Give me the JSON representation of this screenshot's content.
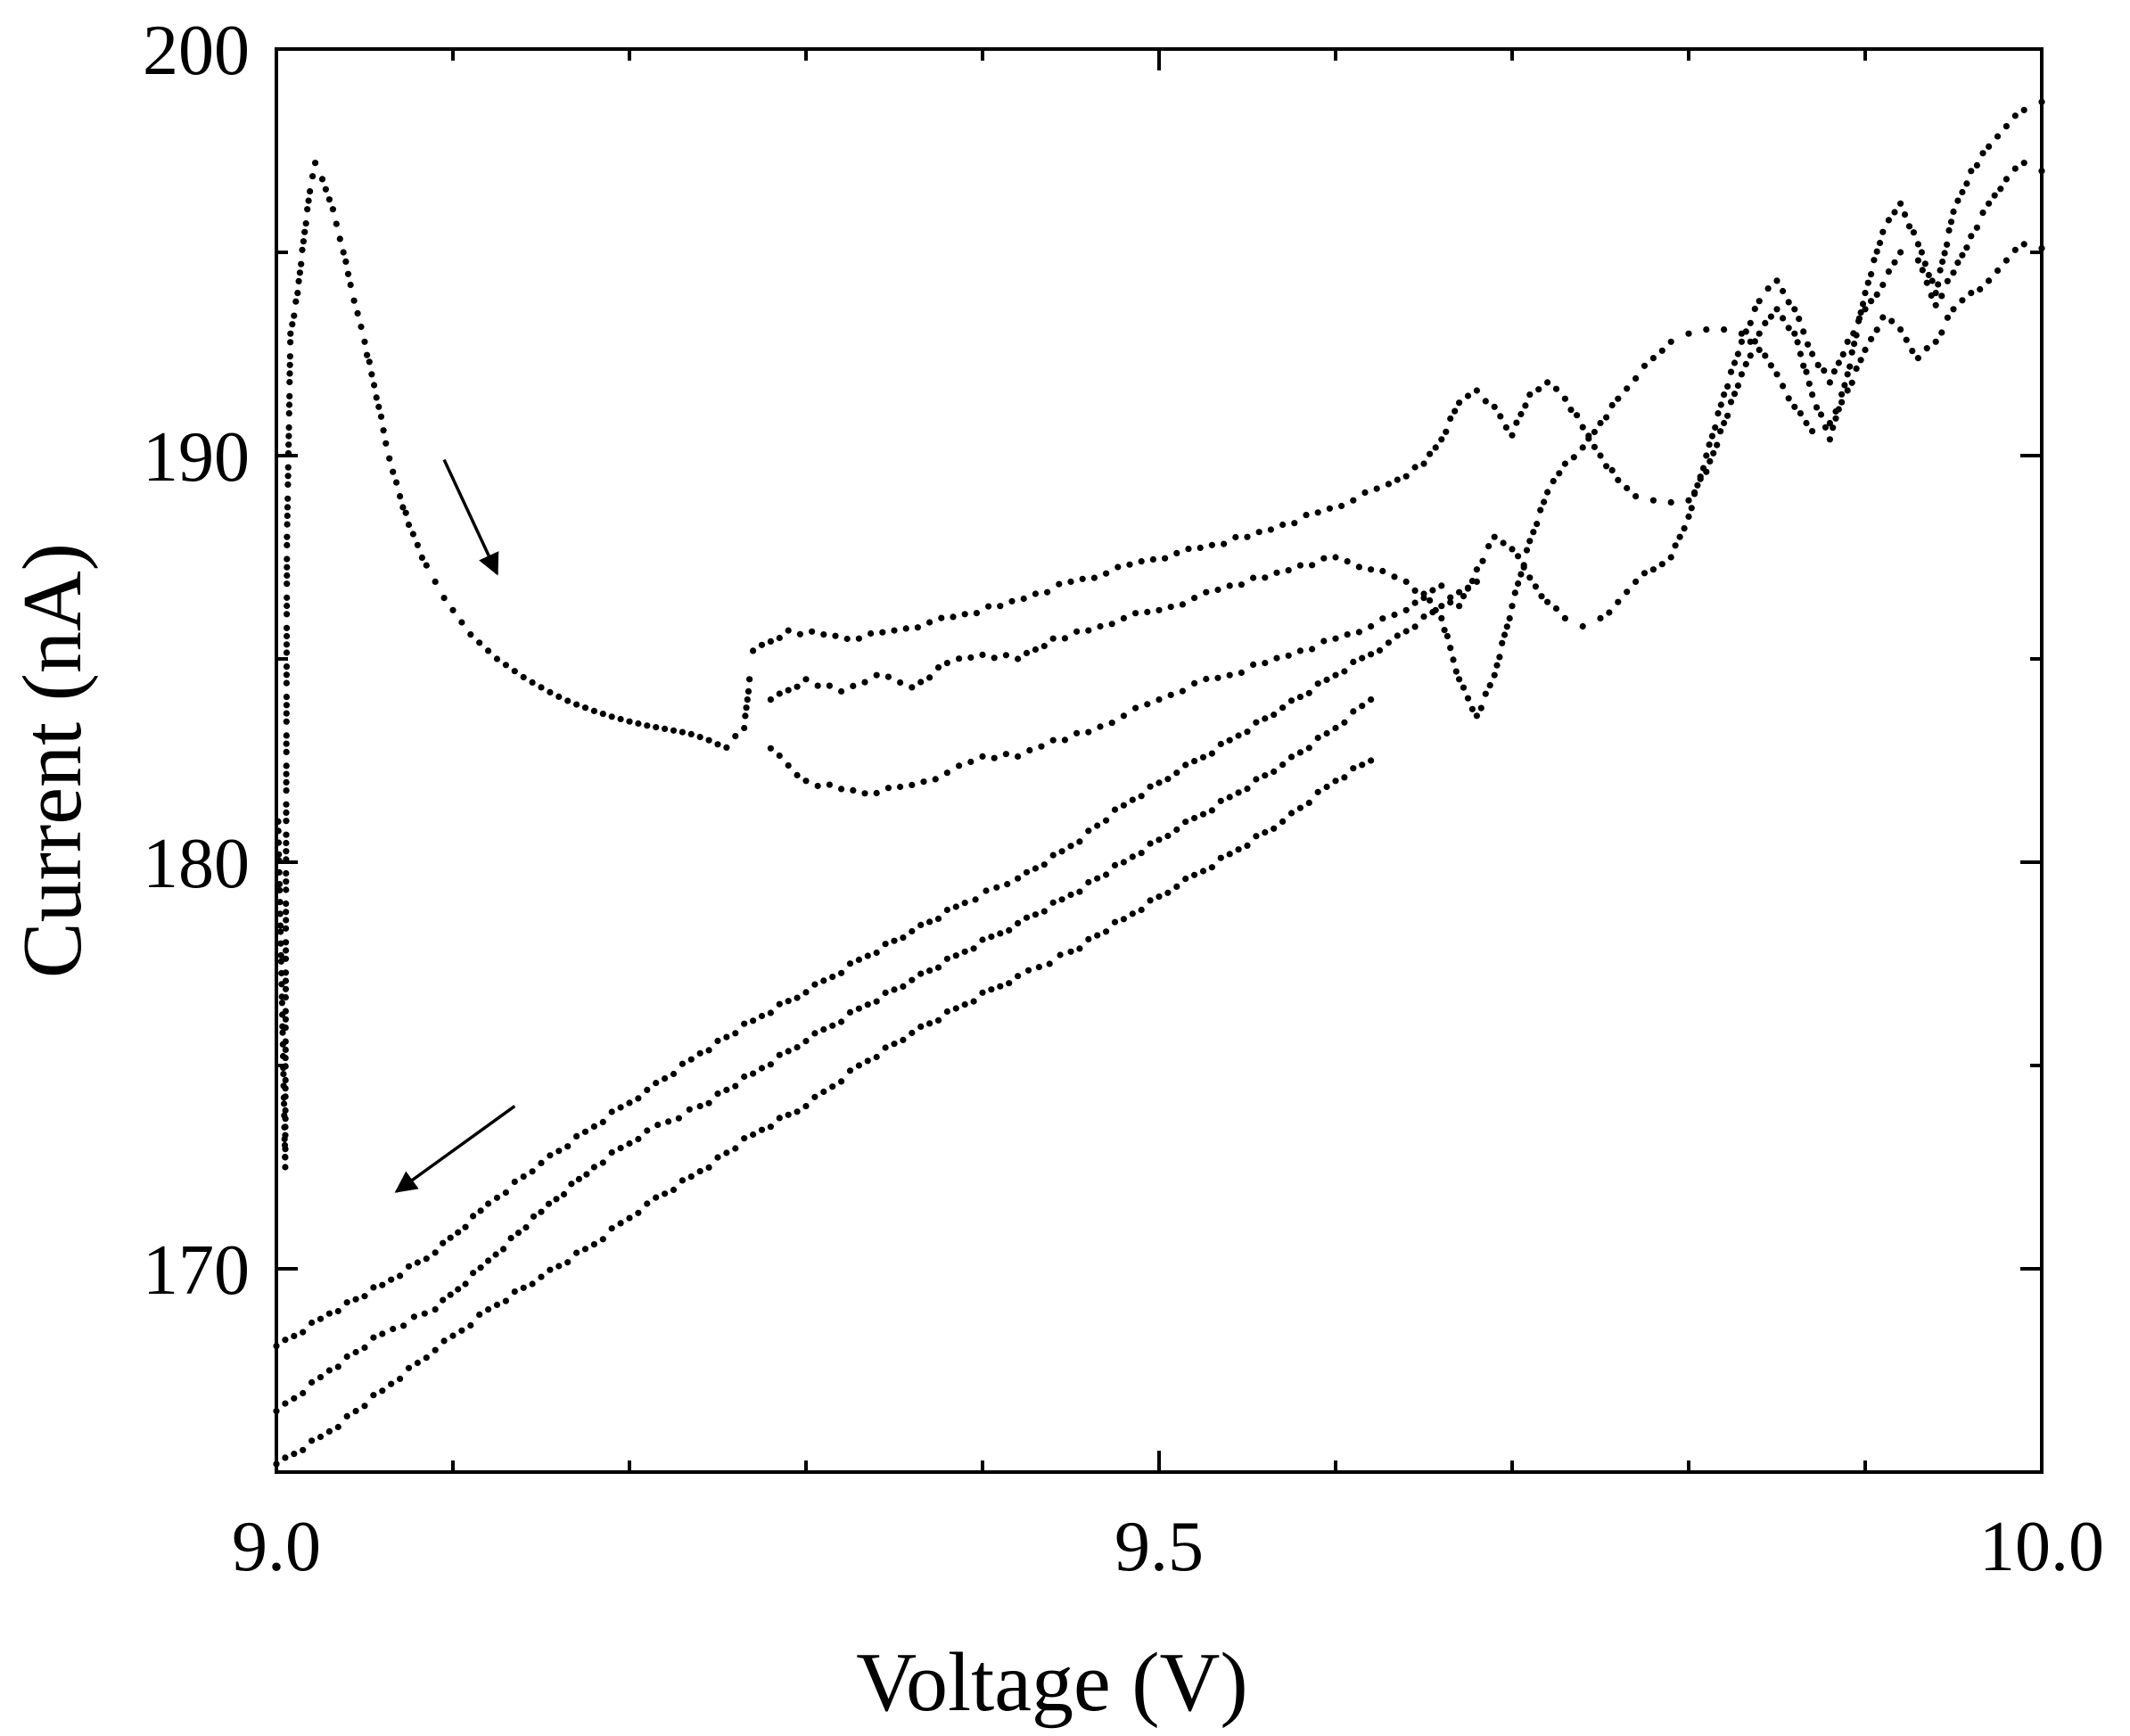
{
  "chart_data": {
    "type": "scatter",
    "title": "",
    "xlabel": "Voltage (V)",
    "ylabel": "Current (nA)",
    "xlim": [
      9.0,
      10.0
    ],
    "ylim": [
      165,
      200
    ],
    "x_ticks": [
      {
        "value": 9.0,
        "label": "9.0"
      },
      {
        "value": 9.5,
        "label": "9.5"
      },
      {
        "value": 10.0,
        "label": "10.0"
      }
    ],
    "x_minor_ticks": [
      9.1,
      9.2,
      9.3,
      9.4,
      9.6,
      9.7,
      9.8,
      9.9
    ],
    "y_ticks": [
      {
        "value": 170,
        "label": "170"
      },
      {
        "value": 180,
        "label": "180"
      },
      {
        "value": 190,
        "label": "190"
      },
      {
        "value": 200,
        "label": "200"
      }
    ],
    "y_minor_ticks": [
      175,
      185,
      195
    ],
    "grid": false,
    "legend": "none",
    "marker_color": "#000000",
    "series": [
      {
        "label_role": "initial-sweep",
        "points": [
          [
            9.001,
            181.0
          ],
          [
            9.003,
            177.0
          ],
          [
            9.005,
            172.5
          ],
          [
            9.006,
            188.0
          ],
          [
            9.008,
            193.0
          ],
          [
            9.012,
            194.0
          ],
          [
            9.016,
            195.5
          ],
          [
            9.019,
            196.5
          ],
          [
            9.022,
            197.2
          ],
          [
            9.026,
            196.8
          ],
          [
            9.03,
            196.3
          ],
          [
            9.034,
            195.7
          ],
          [
            9.038,
            195.0
          ],
          [
            9.042,
            194.2
          ],
          [
            9.046,
            193.5
          ],
          [
            9.05,
            192.8
          ],
          [
            9.054,
            192.0
          ],
          [
            9.058,
            191.2
          ],
          [
            9.062,
            190.3
          ],
          [
            9.066,
            189.6
          ],
          [
            9.07,
            189.0
          ],
          [
            9.075,
            188.3
          ],
          [
            9.08,
            187.8
          ],
          [
            9.085,
            187.3
          ],
          [
            9.09,
            186.9
          ],
          [
            9.095,
            186.5
          ],
          [
            9.1,
            186.2
          ],
          [
            9.105,
            185.9
          ],
          [
            9.11,
            185.6
          ],
          [
            9.115,
            185.4
          ],
          [
            9.12,
            185.2
          ],
          [
            9.125,
            185.0
          ],
          [
            9.13,
            184.85
          ],
          [
            9.135,
            184.7
          ],
          [
            9.14,
            184.55
          ],
          [
            9.145,
            184.42
          ],
          [
            9.15,
            184.3
          ],
          [
            9.155,
            184.18
          ],
          [
            9.16,
            184.07
          ],
          [
            9.165,
            183.97
          ],
          [
            9.17,
            183.88
          ],
          [
            9.175,
            183.8
          ],
          [
            9.18,
            183.72
          ],
          [
            9.185,
            183.65
          ],
          [
            9.19,
            183.58
          ],
          [
            9.195,
            183.52
          ],
          [
            9.2,
            183.46
          ],
          [
            9.205,
            183.41
          ],
          [
            9.21,
            183.36
          ],
          [
            9.215,
            183.32
          ],
          [
            9.22,
            183.28
          ],
          [
            9.225,
            183.24
          ],
          [
            9.23,
            183.2
          ],
          [
            9.235,
            183.15
          ],
          [
            9.24,
            183.08
          ],
          [
            9.245,
            183.0
          ],
          [
            9.25,
            182.9
          ],
          [
            9.255,
            182.82
          ],
          [
            9.26,
            183.1
          ],
          [
            9.265,
            183.3
          ],
          [
            9.268,
            184.5
          ]
        ]
      },
      {
        "label_role": "upper-band-top",
        "points": [
          [
            9.27,
            185.2
          ],
          [
            9.29,
            185.7
          ],
          [
            9.31,
            185.6
          ],
          [
            9.33,
            185.5
          ],
          [
            9.35,
            185.7
          ],
          [
            9.37,
            185.9
          ],
          [
            9.39,
            186.1
          ],
          [
            9.41,
            186.3
          ],
          [
            9.43,
            186.6
          ],
          [
            9.45,
            186.9
          ],
          [
            9.47,
            187.1
          ],
          [
            9.49,
            187.4
          ],
          [
            9.51,
            187.6
          ],
          [
            9.53,
            187.8
          ],
          [
            9.55,
            188.0
          ],
          [
            9.57,
            188.3
          ],
          [
            9.59,
            188.6
          ],
          [
            9.61,
            188.9
          ],
          [
            9.63,
            189.3
          ],
          [
            9.65,
            189.8
          ],
          [
            9.66,
            190.4
          ],
          [
            9.67,
            191.3
          ],
          [
            9.68,
            191.6
          ],
          [
            9.69,
            191.2
          ],
          [
            9.7,
            190.5
          ],
          [
            9.71,
            191.5
          ],
          [
            9.72,
            191.8
          ],
          [
            9.73,
            191.4
          ],
          [
            9.74,
            190.7
          ],
          [
            9.75,
            190.0
          ],
          [
            9.76,
            189.4
          ],
          [
            9.77,
            189.0
          ],
          [
            9.78,
            188.9
          ],
          [
            9.79,
            188.85
          ],
          [
            9.8,
            188.9
          ],
          [
            9.81,
            189.6
          ],
          [
            9.82,
            190.8
          ],
          [
            9.83,
            192.0
          ],
          [
            9.84,
            193.0
          ],
          [
            9.85,
            193.6
          ],
          [
            9.86,
            193.0
          ],
          [
            9.87,
            191.5
          ],
          [
            9.88,
            190.4
          ],
          [
            9.89,
            192.0
          ],
          [
            9.9,
            194.0
          ],
          [
            9.91,
            195.5
          ],
          [
            9.92,
            196.2
          ],
          [
            9.93,
            195.2
          ],
          [
            9.94,
            194.0
          ],
          [
            9.95,
            196.0
          ],
          [
            9.96,
            197.0
          ],
          [
            9.97,
            197.6
          ],
          [
            9.98,
            198.1
          ],
          [
            9.99,
            198.5
          ],
          [
            10.0,
            198.7
          ]
        ]
      },
      {
        "label_role": "upper-band-middle",
        "points": [
          [
            9.28,
            184.0
          ],
          [
            9.3,
            184.5
          ],
          [
            9.32,
            184.2
          ],
          [
            9.34,
            184.6
          ],
          [
            9.36,
            184.3
          ],
          [
            9.38,
            184.9
          ],
          [
            9.4,
            185.1
          ],
          [
            9.42,
            185.0
          ],
          [
            9.44,
            185.5
          ],
          [
            9.46,
            185.7
          ],
          [
            9.48,
            186.0
          ],
          [
            9.5,
            186.2
          ],
          [
            9.52,
            186.5
          ],
          [
            9.54,
            186.8
          ],
          [
            9.56,
            187.0
          ],
          [
            9.58,
            187.3
          ],
          [
            9.6,
            187.5
          ],
          [
            9.62,
            187.2
          ],
          [
            9.64,
            186.9
          ],
          [
            9.65,
            186.5
          ],
          [
            9.66,
            186.8
          ],
          [
            9.67,
            186.3
          ],
          [
            9.68,
            187.2
          ],
          [
            9.69,
            188.0
          ],
          [
            9.7,
            187.7
          ],
          [
            9.71,
            187.0
          ],
          [
            9.72,
            186.4
          ],
          [
            9.73,
            186.0
          ],
          [
            9.74,
            185.8
          ],
          [
            9.75,
            186.0
          ],
          [
            9.76,
            186.4
          ],
          [
            9.77,
            186.9
          ],
          [
            9.78,
            187.2
          ],
          [
            9.79,
            187.5
          ],
          [
            9.8,
            188.5
          ],
          [
            9.81,
            190.0
          ],
          [
            9.82,
            191.5
          ],
          [
            9.83,
            192.8
          ],
          [
            9.84,
            193.8
          ],
          [
            9.85,
            194.3
          ],
          [
            9.86,
            193.6
          ],
          [
            9.87,
            192.5
          ],
          [
            9.88,
            191.8
          ],
          [
            9.89,
            192.8
          ],
          [
            9.9,
            193.6
          ],
          [
            9.91,
            194.2
          ],
          [
            9.92,
            195.0
          ],
          [
            9.93,
            194.8
          ],
          [
            9.94,
            193.7
          ],
          [
            9.95,
            194.5
          ],
          [
            9.96,
            195.4
          ],
          [
            9.97,
            196.2
          ],
          [
            9.98,
            196.8
          ],
          [
            9.99,
            197.2
          ],
          [
            10.0,
            197.0
          ]
        ]
      },
      {
        "label_role": "upper-band-lower",
        "points": [
          [
            9.28,
            182.8
          ],
          [
            9.3,
            182.0
          ],
          [
            9.32,
            181.8
          ],
          [
            9.34,
            181.7
          ],
          [
            9.36,
            181.9
          ],
          [
            9.38,
            182.2
          ],
          [
            9.4,
            182.6
          ],
          [
            9.42,
            182.6
          ],
          [
            9.44,
            183.0
          ],
          [
            9.46,
            183.2
          ],
          [
            9.48,
            183.6
          ],
          [
            9.5,
            184.0
          ],
          [
            9.52,
            184.4
          ],
          [
            9.54,
            184.6
          ],
          [
            9.56,
            184.9
          ],
          [
            9.58,
            185.2
          ],
          [
            9.6,
            185.5
          ],
          [
            9.62,
            185.8
          ],
          [
            9.64,
            186.2
          ],
          [
            9.65,
            186.6
          ],
          [
            9.66,
            186.0
          ],
          [
            9.67,
            184.5
          ],
          [
            9.68,
            183.6
          ],
          [
            9.69,
            184.6
          ],
          [
            9.7,
            186.3
          ],
          [
            9.71,
            187.9
          ],
          [
            9.72,
            189.1
          ],
          [
            9.73,
            189.8
          ],
          [
            9.74,
            190.2
          ],
          [
            9.75,
            190.8
          ],
          [
            9.76,
            191.4
          ],
          [
            9.77,
            191.9
          ],
          [
            9.78,
            192.4
          ],
          [
            9.79,
            192.8
          ],
          [
            9.8,
            193.0
          ],
          [
            9.81,
            193.1
          ],
          [
            9.82,
            193.1
          ],
          [
            9.83,
            193.0
          ],
          [
            9.84,
            192.6
          ],
          [
            9.85,
            192.0
          ],
          [
            9.86,
            191.2
          ],
          [
            9.87,
            190.6
          ],
          [
            9.88,
            190.8
          ],
          [
            9.89,
            191.6
          ],
          [
            9.9,
            192.6
          ],
          [
            9.91,
            193.4
          ],
          [
            9.92,
            193.1
          ],
          [
            9.93,
            192.4
          ],
          [
            9.94,
            192.8
          ],
          [
            9.95,
            193.6
          ],
          [
            9.96,
            194.0
          ],
          [
            9.97,
            194.3
          ],
          [
            9.98,
            194.8
          ],
          [
            9.99,
            195.2
          ],
          [
            10.0,
            195.1
          ]
        ]
      },
      {
        "label_role": "lower-band-upper",
        "points": [
          [
            9.0,
            168.1
          ],
          [
            9.03,
            168.9
          ],
          [
            9.06,
            169.6
          ],
          [
            9.09,
            170.4
          ],
          [
            9.12,
            171.6
          ],
          [
            9.15,
            172.6
          ],
          [
            9.18,
            173.5
          ],
          [
            9.21,
            174.4
          ],
          [
            9.24,
            175.3
          ],
          [
            9.27,
            176.1
          ],
          [
            9.3,
            176.8
          ],
          [
            9.33,
            177.6
          ],
          [
            9.36,
            178.3
          ],
          [
            9.39,
            179.0
          ],
          [
            9.42,
            179.6
          ],
          [
            9.45,
            180.4
          ],
          [
            9.48,
            181.4
          ],
          [
            9.51,
            182.2
          ],
          [
            9.54,
            183.0
          ],
          [
            9.57,
            183.8
          ],
          [
            9.6,
            184.6
          ],
          [
            9.63,
            185.4
          ],
          [
            9.66,
            186.3
          ],
          [
            9.68,
            186.9
          ]
        ]
      },
      {
        "label_role": "lower-band-middle",
        "points": [
          [
            9.0,
            166.5
          ],
          [
            9.03,
            167.5
          ],
          [
            9.06,
            168.4
          ],
          [
            9.09,
            169.0
          ],
          [
            9.12,
            170.2
          ],
          [
            9.15,
            171.4
          ],
          [
            9.18,
            172.5
          ],
          [
            9.21,
            173.4
          ],
          [
            9.24,
            174.0
          ],
          [
            9.27,
            174.8
          ],
          [
            9.3,
            175.6
          ],
          [
            9.33,
            176.4
          ],
          [
            9.36,
            177.1
          ],
          [
            9.39,
            177.8
          ],
          [
            9.42,
            178.5
          ],
          [
            9.45,
            179.2
          ],
          [
            9.48,
            180.0
          ],
          [
            9.51,
            180.8
          ],
          [
            9.54,
            181.6
          ],
          [
            9.57,
            182.4
          ],
          [
            9.6,
            183.3
          ],
          [
            9.62,
            184.0
          ]
        ]
      },
      {
        "label_role": "lower-band-lower",
        "points": [
          [
            9.0,
            165.2
          ],
          [
            9.03,
            166.0
          ],
          [
            9.06,
            167.0
          ],
          [
            9.09,
            168.0
          ],
          [
            9.12,
            169.0
          ],
          [
            9.15,
            169.8
          ],
          [
            9.18,
            170.6
          ],
          [
            9.21,
            171.6
          ],
          [
            9.24,
            172.4
          ],
          [
            9.27,
            173.3
          ],
          [
            9.3,
            174.0
          ],
          [
            9.33,
            175.0
          ],
          [
            9.36,
            175.8
          ],
          [
            9.39,
            176.5
          ],
          [
            9.42,
            177.2
          ],
          [
            9.45,
            177.8
          ],
          [
            9.48,
            178.6
          ],
          [
            9.51,
            179.4
          ],
          [
            9.54,
            180.2
          ],
          [
            9.57,
            181.0
          ],
          [
            9.6,
            182.0
          ],
          [
            9.62,
            182.5
          ]
        ]
      }
    ],
    "annotations": [
      {
        "type": "arrow",
        "from": [
          9.095,
          189.9
        ],
        "to": [
          9.125,
          187.1
        ],
        "meaning": "sweep direction"
      },
      {
        "type": "arrow",
        "from": [
          9.135,
          174.0
        ],
        "to": [
          9.068,
          171.9
        ],
        "meaning": "sweep direction"
      }
    ]
  }
}
